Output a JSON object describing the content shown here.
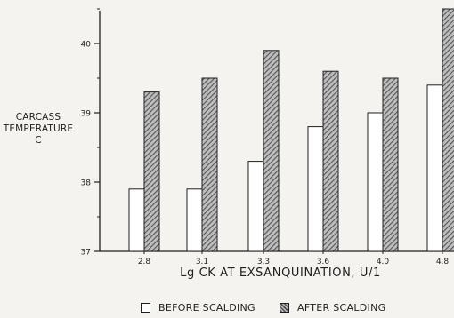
{
  "chart_data": {
    "type": "bar",
    "ylabel_lines": [
      "CARCASS",
      "TEMPERATURE",
      "C"
    ],
    "xlabel": "Lg CK AT EXSANQUINATION, U/1",
    "categories": [
      "2.8",
      "3.1",
      "3.3",
      "3.6",
      "4.0",
      "4.8"
    ],
    "ylim": [
      37,
      40.5
    ],
    "yticks": [
      "37",
      "38",
      "39",
      "40"
    ],
    "series": [
      {
        "name": "BEFORE SCALDING",
        "values": [
          37.9,
          37.9,
          38.3,
          38.8,
          39.0,
          39.4
        ],
        "fill": "white"
      },
      {
        "name": "AFTER SCALDING",
        "values": [
          39.3,
          39.5,
          39.9,
          39.6,
          39.5,
          40.5
        ],
        "fill": "hatched"
      }
    ],
    "grid": false,
    "legend_position": "bottom"
  },
  "colors": {
    "ink": "#1f1f1f",
    "background": "#f4f3ef",
    "hatch": "#555555"
  }
}
